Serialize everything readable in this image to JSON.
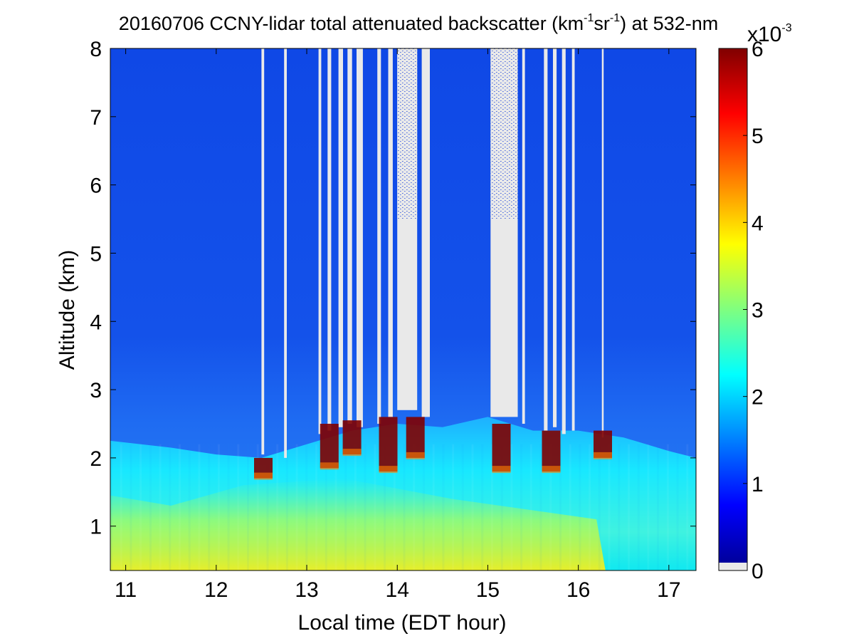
{
  "chart_data": {
    "type": "heatmap",
    "title": {
      "pre": "20160706 CCNY-lidar total attenuated backscatter (km",
      "sup1": "-1",
      "mid": "sr",
      "sup2": "-1",
      "post": ") at 532-nm"
    },
    "xlabel": "Local time (EDT hour)",
    "ylabel": "Altitude (km)",
    "xlim": [
      10.83,
      17.3
    ],
    "ylim": [
      0.35,
      8
    ],
    "xticks": [
      11,
      12,
      13,
      14,
      15,
      16,
      17
    ],
    "yticks": [
      1,
      2,
      3,
      4,
      5,
      6,
      7,
      8
    ],
    "colorbar": {
      "range": [
        0,
        6
      ],
      "ticks": [
        0,
        1,
        2,
        3,
        4,
        5,
        6
      ],
      "multiplier_base": "x10",
      "multiplier_exp": "-3",
      "colormap": "jet",
      "below_range_color": "#e9e9e9"
    },
    "boundary_layer_top_km": [
      {
        "t": 10.83,
        "h": 2.25
      },
      {
        "t": 11.5,
        "h": 2.15
      },
      {
        "t": 12.0,
        "h": 2.05
      },
      {
        "t": 12.5,
        "h": 2.0
      },
      {
        "t": 13.0,
        "h": 2.2
      },
      {
        "t": 13.5,
        "h": 2.4
      },
      {
        "t": 14.0,
        "h": 2.5
      },
      {
        "t": 14.5,
        "h": 2.45
      },
      {
        "t": 15.0,
        "h": 2.6
      },
      {
        "t": 15.5,
        "h": 2.4
      },
      {
        "t": 16.0,
        "h": 2.4
      },
      {
        "t": 16.5,
        "h": 2.3
      },
      {
        "t": 17.0,
        "h": 2.1
      },
      {
        "t": 17.3,
        "h": 2.0
      }
    ],
    "no_signal_periods": [
      {
        "start": 12.5,
        "end": 12.53,
        "base_km": 2.05
      },
      {
        "start": 12.75,
        "end": 12.78,
        "base_km": 2.0
      },
      {
        "start": 13.13,
        "end": 13.16,
        "base_km": 2.35
      },
      {
        "start": 13.23,
        "end": 13.27,
        "base_km": 2.4
      },
      {
        "start": 13.35,
        "end": 13.4,
        "base_km": 2.45
      },
      {
        "start": 13.45,
        "end": 13.5,
        "base_km": 2.5
      },
      {
        "start": 13.55,
        "end": 13.62,
        "base_km": 2.45
      },
      {
        "start": 13.78,
        "end": 13.82,
        "base_km": 2.5
      },
      {
        "start": 13.9,
        "end": 13.95,
        "base_km": 2.6
      },
      {
        "start": 14.0,
        "end": 14.22,
        "base_km": 2.7
      },
      {
        "start": 14.27,
        "end": 14.36,
        "base_km": 2.6
      },
      {
        "start": 15.03,
        "end": 15.33,
        "base_km": 2.6
      },
      {
        "start": 15.38,
        "end": 15.41,
        "base_km": 2.5
      },
      {
        "start": 15.62,
        "end": 15.66,
        "base_km": 2.4
      },
      {
        "start": 15.72,
        "end": 15.76,
        "base_km": 2.45
      },
      {
        "start": 15.82,
        "end": 15.86,
        "base_km": 2.35
      },
      {
        "start": 15.93,
        "end": 15.96,
        "base_km": 2.4
      },
      {
        "start": 16.26,
        "end": 16.28,
        "base_km": 2.3
      }
    ],
    "cloud_features": [
      {
        "t": 12.52,
        "base_km": 1.7,
        "top_km": 2.0,
        "value": 6
      },
      {
        "t": 13.25,
        "base_km": 1.85,
        "top_km": 2.5,
        "value": 6
      },
      {
        "t": 13.5,
        "base_km": 2.05,
        "top_km": 2.55,
        "value": 6
      },
      {
        "t": 13.9,
        "base_km": 1.8,
        "top_km": 2.6,
        "value": 6
      },
      {
        "t": 14.2,
        "base_km": 2.0,
        "top_km": 2.6,
        "value": 6
      },
      {
        "t": 15.15,
        "base_km": 1.8,
        "top_km": 2.5,
        "value": 6
      },
      {
        "t": 15.7,
        "base_km": 1.8,
        "top_km": 2.4,
        "value": 6
      },
      {
        "t": 16.27,
        "base_km": 2.0,
        "top_km": 2.4,
        "value": 6
      }
    ],
    "near_surface_max": {
      "t_range": [
        11.0,
        12.3
      ],
      "value": 4
    }
  }
}
